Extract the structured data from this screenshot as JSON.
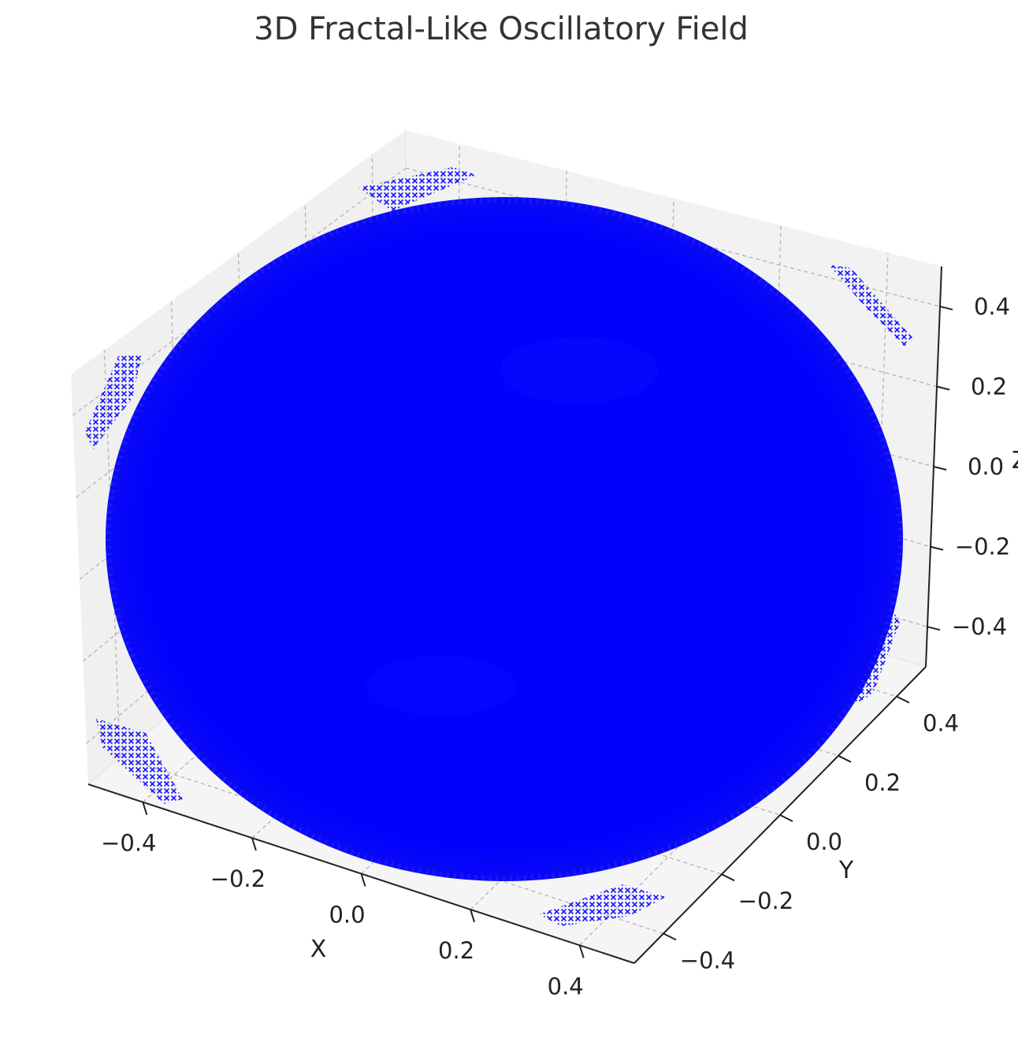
{
  "chart_data": {
    "type": "scatter",
    "projection": "3d",
    "title": "3D Fractal-Like Oscillatory Field",
    "xlabel": "X",
    "ylabel": "Y",
    "zlabel": "Z",
    "xlim": [
      -0.5,
      0.5
    ],
    "ylim": [
      -0.5,
      0.5
    ],
    "zlim": [
      -0.5,
      0.5
    ],
    "x_ticks": [
      "−0.4",
      "−0.2",
      "0.0",
      "0.2",
      "0.4"
    ],
    "y_ticks": [
      "−0.4",
      "−0.2",
      "0.0",
      "0.2",
      "0.4"
    ],
    "z_ticks": [
      "−0.4",
      "−0.2",
      "0.0",
      "0.2",
      "0.4"
    ],
    "grid": true,
    "marker": "x",
    "marker_color": "#0000ff",
    "point_cloud": "dense points filling a sphere of radius 0.5 centered at the origin, plus small clusters near the corners of the cube"
  }
}
